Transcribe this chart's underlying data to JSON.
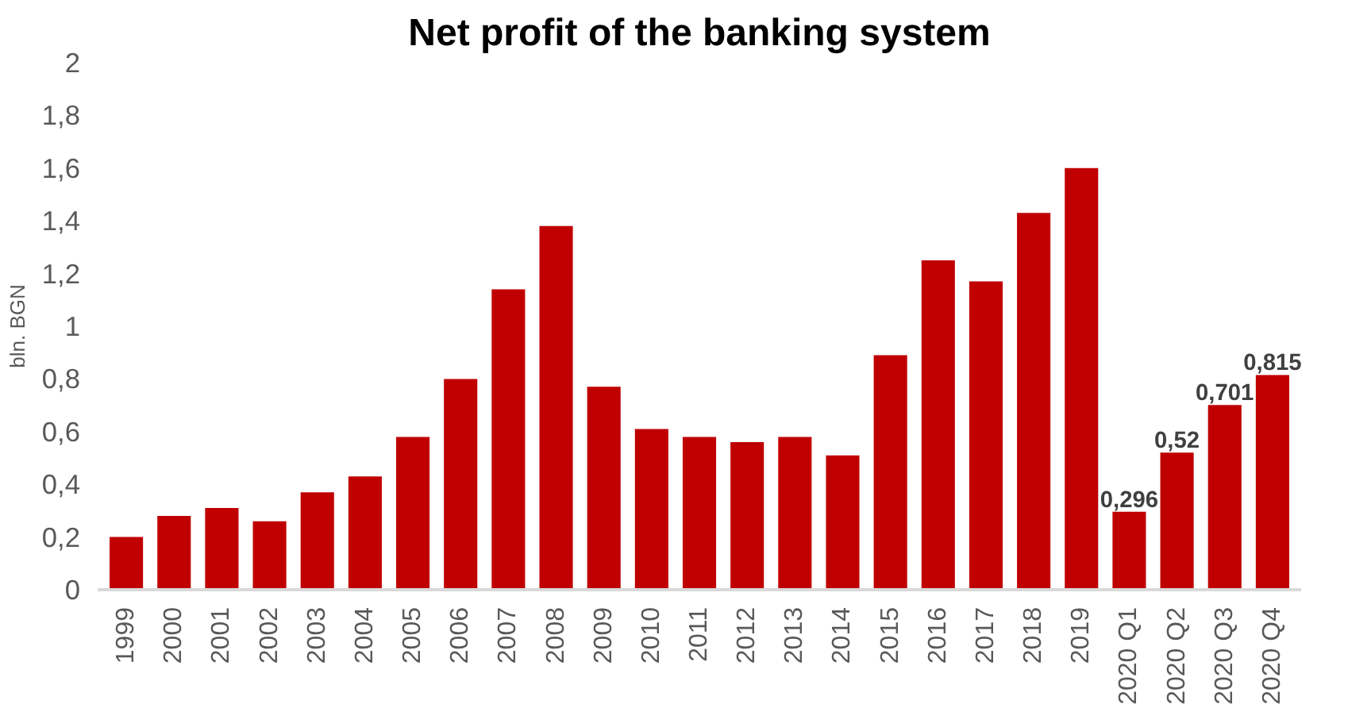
{
  "chart_data": {
    "type": "bar",
    "title": "Net profit of the banking system",
    "ylabel": "bln. BGN",
    "categories": [
      "1999",
      "2000",
      "2001",
      "2002",
      "2003",
      "2004",
      "2005",
      "2006",
      "2007",
      "2008",
      "2009",
      "2010",
      "2011",
      "2012",
      "2013",
      "2014",
      "2015",
      "2016",
      "2017",
      "2018",
      "2019",
      "2020 Q1",
      "2020 Q2",
      "2020 Q3",
      "2020 Q4"
    ],
    "values": [
      0.2,
      0.28,
      0.31,
      0.26,
      0.37,
      0.43,
      0.58,
      0.8,
      1.14,
      1.38,
      0.77,
      0.61,
      0.58,
      0.56,
      0.58,
      0.51,
      0.89,
      1.25,
      1.17,
      1.43,
      1.6,
      0.296,
      0.52,
      0.701,
      0.815
    ],
    "value_labels": [
      null,
      null,
      null,
      null,
      null,
      null,
      null,
      null,
      null,
      null,
      null,
      null,
      null,
      null,
      null,
      null,
      null,
      null,
      null,
      null,
      null,
      "0,296",
      "0,52",
      "0,701",
      "0,815"
    ],
    "color": "#c00000",
    "ylim": [
      0,
      2
    ],
    "yticks": [
      0,
      {
        "value": 0.2,
        "label": "0,2"
      },
      {
        "value": 0.4,
        "label": "0,4"
      },
      {
        "value": 0.6,
        "label": "0,6"
      },
      {
        "value": 0.8,
        "label": "0,8"
      },
      1,
      {
        "value": 1.2,
        "label": "1,2"
      },
      {
        "value": 1.4,
        "label": "1,4"
      },
      {
        "value": 1.6,
        "label": "1,6"
      },
      {
        "value": 1.8,
        "label": "1,8"
      },
      2
    ],
    "grid": false
  }
}
